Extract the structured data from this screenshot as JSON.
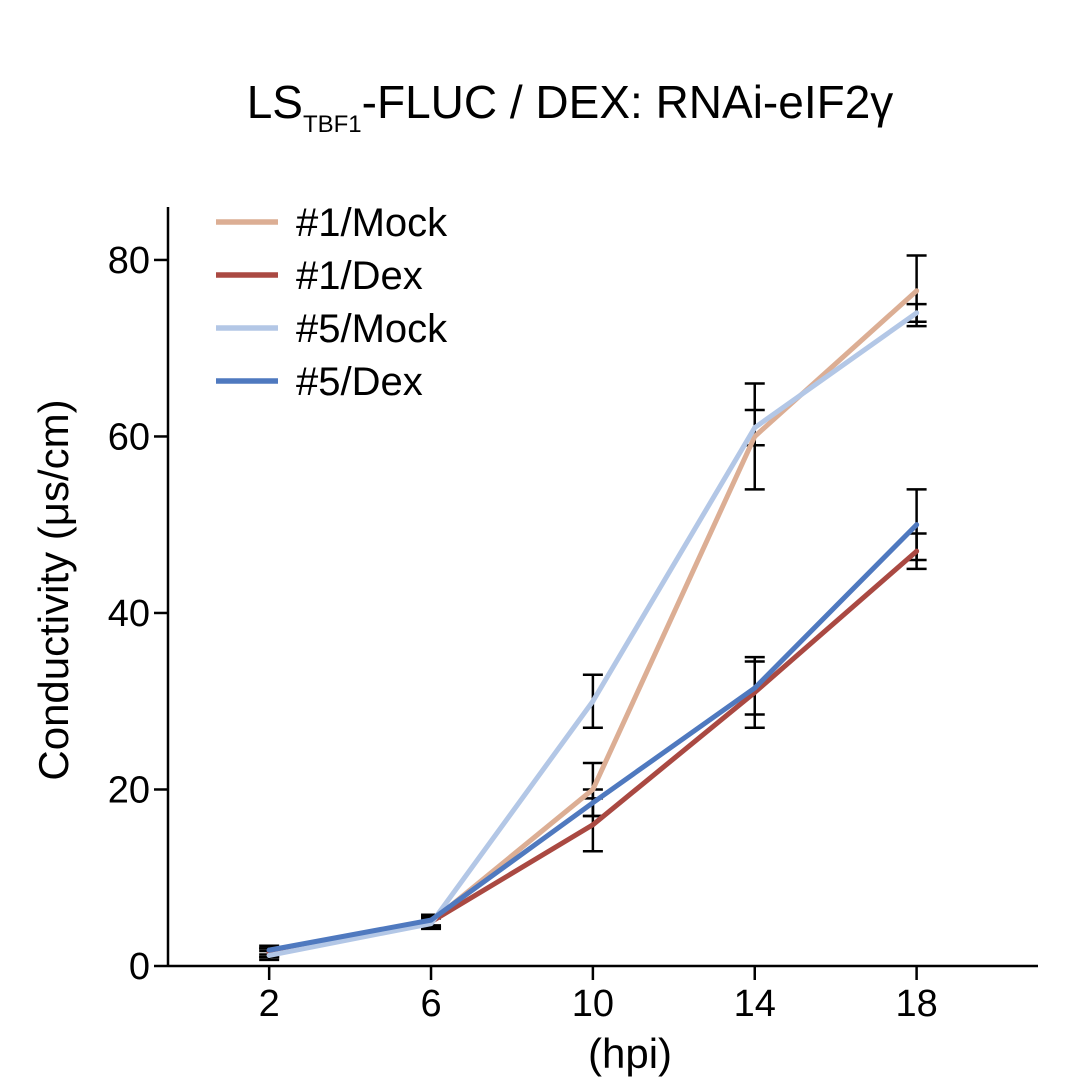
{
  "chart_data": {
    "type": "line",
    "title_main": "LS",
    "title_sub": "TBF1",
    "title_rest": "-FLUC / DEX: RNAi-eIF2γ",
    "xlabel": "(hpi)",
    "ylabel": "Conductivity (μs/cm)",
    "x": [
      2,
      6,
      10,
      14,
      18
    ],
    "x_ticks": [
      "2",
      "6",
      "10",
      "14",
      "18"
    ],
    "y_ticks": [
      "0",
      "20",
      "40",
      "60",
      "80"
    ],
    "xlim": [
      -0.5,
      21
    ],
    "ylim": [
      0,
      86
    ],
    "legend_position": "top-left",
    "series": [
      {
        "name": "#1/Mock",
        "color": "#dcae94",
        "values": [
          1.5,
          5.0,
          20.0,
          60.0,
          76.5
        ],
        "errors": [
          0.5,
          0.6,
          3.0,
          6.0,
          4.0
        ]
      },
      {
        "name": "#1/Dex",
        "color": "#aa4942",
        "values": [
          1.5,
          5.0,
          16.0,
          31.0,
          47.0
        ],
        "errors": [
          0.5,
          0.6,
          3.0,
          4.0,
          2.0
        ]
      },
      {
        "name": "#5/Mock",
        "color": "#b3c7e6",
        "values": [
          1.2,
          4.8,
          30.0,
          61.0,
          74.0
        ],
        "errors": [
          0.5,
          0.6,
          3.0,
          2.0,
          1.0
        ]
      },
      {
        "name": "#5/Dex",
        "color": "#4f79bf",
        "values": [
          1.8,
          5.2,
          18.5,
          31.5,
          50.0
        ],
        "errors": [
          0.5,
          0.6,
          1.5,
          3.0,
          4.0
        ]
      }
    ]
  }
}
